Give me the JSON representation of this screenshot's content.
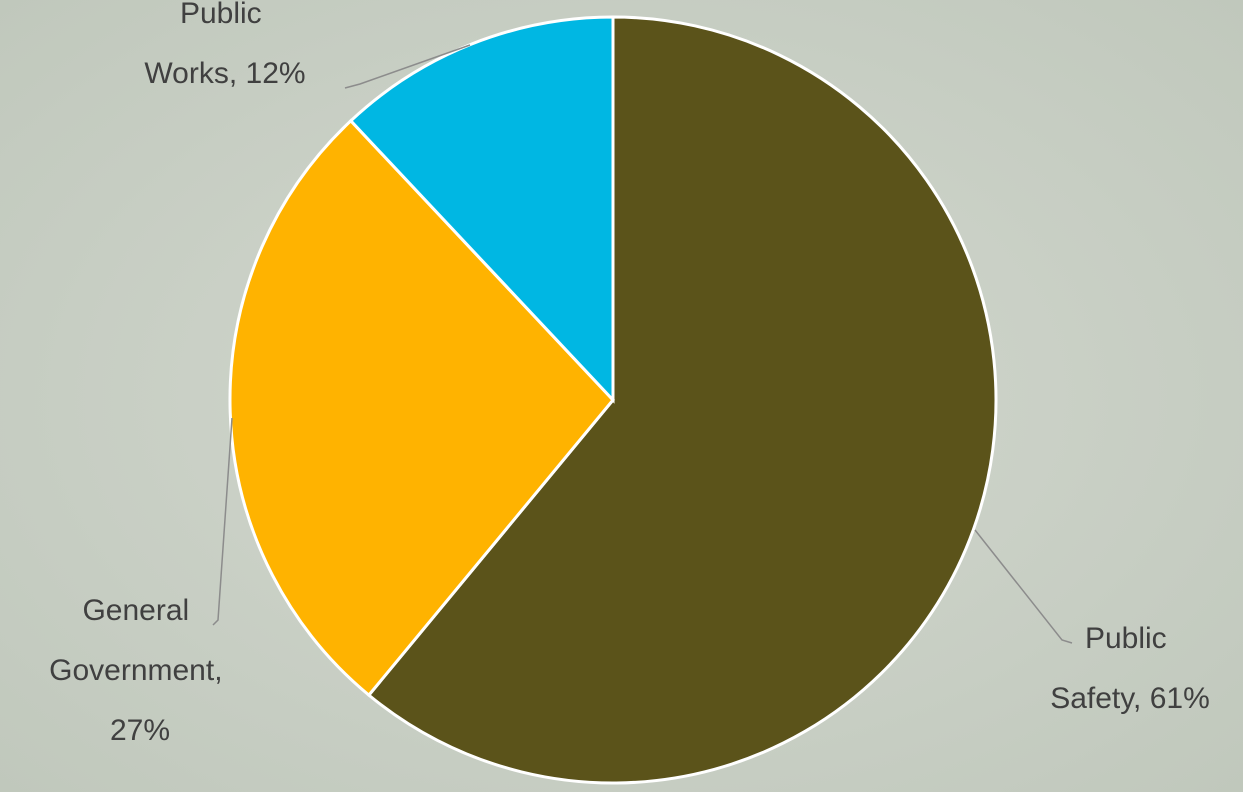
{
  "chart_data": {
    "type": "pie",
    "values": [
      61,
      27,
      12
    ],
    "value_labels": [
      "Public Safety, 61%",
      "General Government, 27%",
      "Public Works, 12%"
    ],
    "colors": [
      "#5b531a",
      "#ffb300",
      "#00b7e3"
    ]
  }
}
